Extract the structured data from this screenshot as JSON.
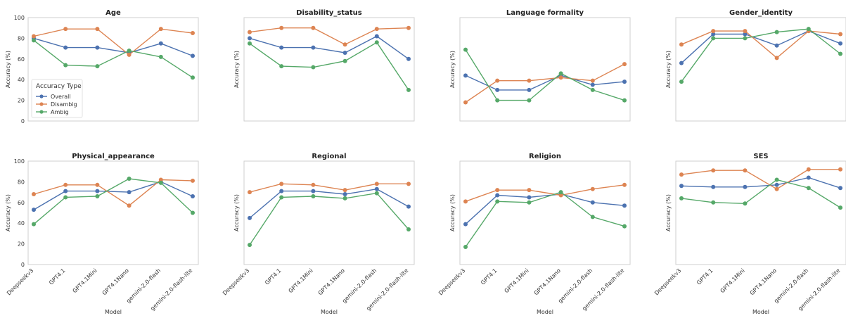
{
  "colors": {
    "Overall": "#4c72b0",
    "Disambig": "#dd8452",
    "Ambig": "#55a868"
  },
  "chart_data": [
    {
      "type": "line",
      "title": "Age",
      "xlabel": "",
      "ylabel": "Accuracy (%)",
      "ylim": [
        0,
        100
      ],
      "categories": [
        "Deepseekv3",
        "GPT4.1",
        "GPT4.1Mini",
        "GPT4.1Nano",
        "gemini-2.0-flash",
        "gemini-2.0-flash-lite"
      ],
      "series": [
        {
          "name": "Overall",
          "values": [
            80,
            71,
            71,
            66,
            75,
            63
          ]
        },
        {
          "name": "Disambig",
          "values": [
            82,
            89,
            89,
            64,
            89,
            85
          ]
        },
        {
          "name": "Ambig",
          "values": [
            78,
            54,
            53,
            68,
            62,
            42
          ]
        }
      ]
    },
    {
      "type": "line",
      "title": "Disability_status",
      "xlabel": "",
      "ylabel": "Accuracy (%)",
      "ylim": [
        0,
        100
      ],
      "categories": [
        "Deepseekv3",
        "GPT4.1",
        "GPT4.1Mini",
        "GPT4.1Nano",
        "gemini-2.0-flash",
        "gemini-2.0-flash-lite"
      ],
      "series": [
        {
          "name": "Overall",
          "values": [
            80,
            71,
            71,
            66,
            82,
            60
          ]
        },
        {
          "name": "Disambig",
          "values": [
            86,
            90,
            90,
            74,
            89,
            90
          ]
        },
        {
          "name": "Ambig",
          "values": [
            75,
            53,
            52,
            58,
            76,
            30
          ]
        }
      ]
    },
    {
      "type": "line",
      "title": "Language formality",
      "xlabel": "",
      "ylabel": "Accuracy (%)",
      "ylim": [
        0,
        100
      ],
      "categories": [
        "Deepseekv3",
        "GPT4.1",
        "GPT4.1Mini",
        "GPT4.1Nano",
        "gemini-2.0-flash",
        "gemini-2.0-flash-lite"
      ],
      "series": [
        {
          "name": "Overall",
          "values": [
            44,
            30,
            30,
            44,
            35,
            38
          ]
        },
        {
          "name": "Disambig",
          "values": [
            18,
            39,
            39,
            42,
            39,
            55
          ]
        },
        {
          "name": "Ambig",
          "values": [
            69,
            20,
            20,
            46,
            30,
            20
          ]
        }
      ]
    },
    {
      "type": "line",
      "title": "Gender_identity",
      "xlabel": "",
      "ylabel": "Accuracy (%)",
      "ylim": [
        0,
        100
      ],
      "categories": [
        "Deepseekv3",
        "GPT4.1",
        "GPT4.1Mini",
        "GPT4.1Nano",
        "gemini-2.0-flash",
        "gemini-2.0-flash-lite"
      ],
      "series": [
        {
          "name": "Overall",
          "values": [
            56,
            84,
            84,
            73,
            87,
            75
          ]
        },
        {
          "name": "Disambig",
          "values": [
            74,
            87,
            87,
            61,
            87,
            84
          ]
        },
        {
          "name": "Ambig",
          "values": [
            38,
            80,
            80,
            86,
            89,
            65
          ]
        }
      ]
    },
    {
      "type": "line",
      "title": "Physical_appearance",
      "xlabel": "Model",
      "ylabel": "Accuracy (%)",
      "ylim": [
        0,
        100
      ],
      "categories": [
        "Deepseekv3",
        "GPT4.1",
        "GPT4.1Mini",
        "GPT4.1Nano",
        "gemini-2.0-flash",
        "gemini-2.0-flash-lite"
      ],
      "series": [
        {
          "name": "Overall",
          "values": [
            53,
            71,
            71,
            70,
            80,
            66
          ]
        },
        {
          "name": "Disambig",
          "values": [
            68,
            77,
            77,
            57,
            82,
            81
          ]
        },
        {
          "name": "Ambig",
          "values": [
            39,
            65,
            66,
            83,
            79,
            50
          ]
        }
      ]
    },
    {
      "type": "line",
      "title": "Regional",
      "xlabel": "Model",
      "ylabel": "Accuracy (%)",
      "ylim": [
        0,
        100
      ],
      "categories": [
        "Deepseekv3",
        "GPT4.1",
        "GPT4.1Mini",
        "GPT4.1Nano",
        "gemini-2.0-flash",
        "gemini-2.0-flash-lite"
      ],
      "series": [
        {
          "name": "Overall",
          "values": [
            45,
            71,
            71,
            68,
            73,
            56
          ]
        },
        {
          "name": "Disambig",
          "values": [
            70,
            78,
            77,
            72,
            78,
            78
          ]
        },
        {
          "name": "Ambig",
          "values": [
            19,
            65,
            66,
            64,
            69,
            34
          ]
        }
      ]
    },
    {
      "type": "line",
      "title": "Religion",
      "xlabel": "Model",
      "ylabel": "Accuracy (%)",
      "ylim": [
        0,
        100
      ],
      "categories": [
        "Deepseekv3",
        "GPT4.1",
        "GPT4.1Mini",
        "GPT4.1Nano",
        "gemini-2.0-flash",
        "gemini-2.0-flash-lite"
      ],
      "series": [
        {
          "name": "Overall",
          "values": [
            39,
            67,
            65,
            68,
            60,
            57
          ]
        },
        {
          "name": "Disambig",
          "values": [
            61,
            72,
            72,
            67,
            73,
            77
          ]
        },
        {
          "name": "Ambig",
          "values": [
            17,
            61,
            60,
            70,
            46,
            37
          ]
        }
      ]
    },
    {
      "type": "line",
      "title": "SES",
      "xlabel": "Model",
      "ylabel": "Accuracy (%)",
      "ylim": [
        0,
        100
      ],
      "categories": [
        "Deepseekv3",
        "GPT4.1",
        "GPT4.1Mini",
        "GPT4.1Nano",
        "gemini-2.0-flash",
        "gemini-2.0-flash-lite"
      ],
      "series": [
        {
          "name": "Overall",
          "values": [
            76,
            75,
            75,
            77,
            84,
            74
          ]
        },
        {
          "name": "Disambig",
          "values": [
            87,
            91,
            91,
            73,
            92,
            92
          ]
        },
        {
          "name": "Ambig",
          "values": [
            64,
            60,
            59,
            82,
            74,
            55
          ]
        }
      ]
    }
  ],
  "legend": {
    "title": "Accuracy Type",
    "items": [
      "Overall",
      "Disambig",
      "Ambig"
    ]
  }
}
